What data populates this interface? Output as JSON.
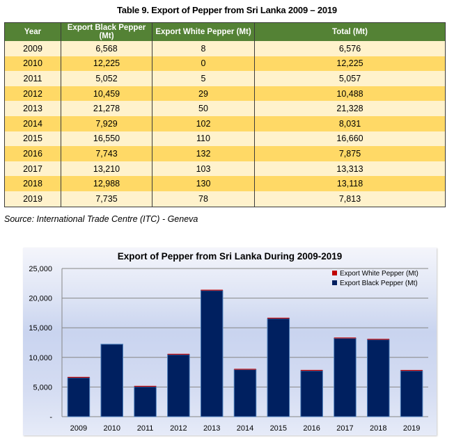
{
  "table": {
    "title": "Table 9. Export of Pepper from Sri Lanka 2009 – 2019",
    "headers": [
      "Year",
      "Export Black Pepper (Mt)",
      "Export White Pepper (Mt)",
      "Total (Mt)"
    ],
    "rows": [
      [
        "2009",
        "6,568",
        "8",
        "6,576"
      ],
      [
        "2010",
        "12,225",
        "0",
        "12,225"
      ],
      [
        "2011",
        "5,052",
        "5",
        "5,057"
      ],
      [
        "2012",
        "10,459",
        "29",
        "10,488"
      ],
      [
        "2013",
        "21,278",
        "50",
        "21,328"
      ],
      [
        "2014",
        "7,929",
        "102",
        "8,031"
      ],
      [
        "2015",
        "16,550",
        "110",
        "16,660"
      ],
      [
        "2016",
        "7,743",
        "132",
        "7,875"
      ],
      [
        "2017",
        "13,210",
        "103",
        "13,313"
      ],
      [
        "2018",
        "12,988",
        "130",
        "13,118"
      ],
      [
        "2019",
        "7,735",
        "78",
        "7,813"
      ]
    ],
    "source": "Source: International Trade Centre (ITC) - Geneva",
    "colors": {
      "header": "#548235",
      "row_light": "#FFF2CC",
      "row_dark": "#FFD966"
    }
  },
  "chart_data": {
    "type": "bar",
    "stacked": true,
    "title": "Export of Pepper from Sri Lanka During 2009-2019",
    "xlabel": "",
    "ylabel": "",
    "categories": [
      "2009",
      "2010",
      "2011",
      "2012",
      "2013",
      "2014",
      "2015",
      "2016",
      "2017",
      "2018",
      "2019"
    ],
    "series": [
      {
        "name": "Export Black Pepper (Mt)",
        "color": "#002060",
        "values": [
          6568,
          12225,
          5052,
          10459,
          21278,
          7929,
          16550,
          7743,
          13210,
          12988,
          7735
        ]
      },
      {
        "name": "Export White Pepper (Mt)",
        "color": "#C00000",
        "values": [
          8,
          0,
          5,
          29,
          50,
          102,
          110,
          132,
          103,
          130,
          78
        ]
      }
    ],
    "ylim": [
      0,
      25000
    ],
    "yticks": [
      0,
      5000,
      10000,
      15000,
      20000,
      25000
    ],
    "ytick_labels": [
      "-",
      "5,000",
      "10,000",
      "15,000",
      "20,000",
      "25,000"
    ],
    "grid": true,
    "legend": {
      "placement": "top-right",
      "entries": [
        "Export White Pepper (Mt)",
        "Export Black Pepper (Mt)"
      ]
    }
  }
}
